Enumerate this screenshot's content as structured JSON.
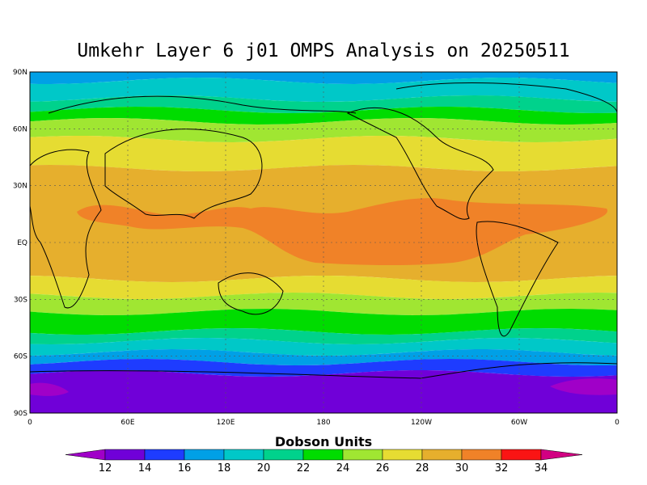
{
  "title": "Umkehr Layer 6 j01 OMPS Analysis on 20250511",
  "map": {
    "lat_labels": [
      "90N",
      "60N",
      "30N",
      "EQ",
      "30S",
      "60S",
      "90S"
    ],
    "lon_labels": [
      "0",
      "60E",
      "120E",
      "180",
      "120W",
      "60W",
      "0"
    ]
  },
  "colorbar": {
    "label": "Dobson Units",
    "ticks": [
      12,
      14,
      16,
      18,
      20,
      22,
      24,
      26,
      28,
      30,
      32,
      34
    ],
    "under_color": "#a000c8",
    "over_color": "#d20082",
    "colors": [
      "#7000d8",
      "#1e3cff",
      "#00a0e6",
      "#00c8c8",
      "#00d28c",
      "#00dc00",
      "#a0e632",
      "#e6dc32",
      "#e6af2d",
      "#f08228",
      "#fa1414"
    ]
  }
}
